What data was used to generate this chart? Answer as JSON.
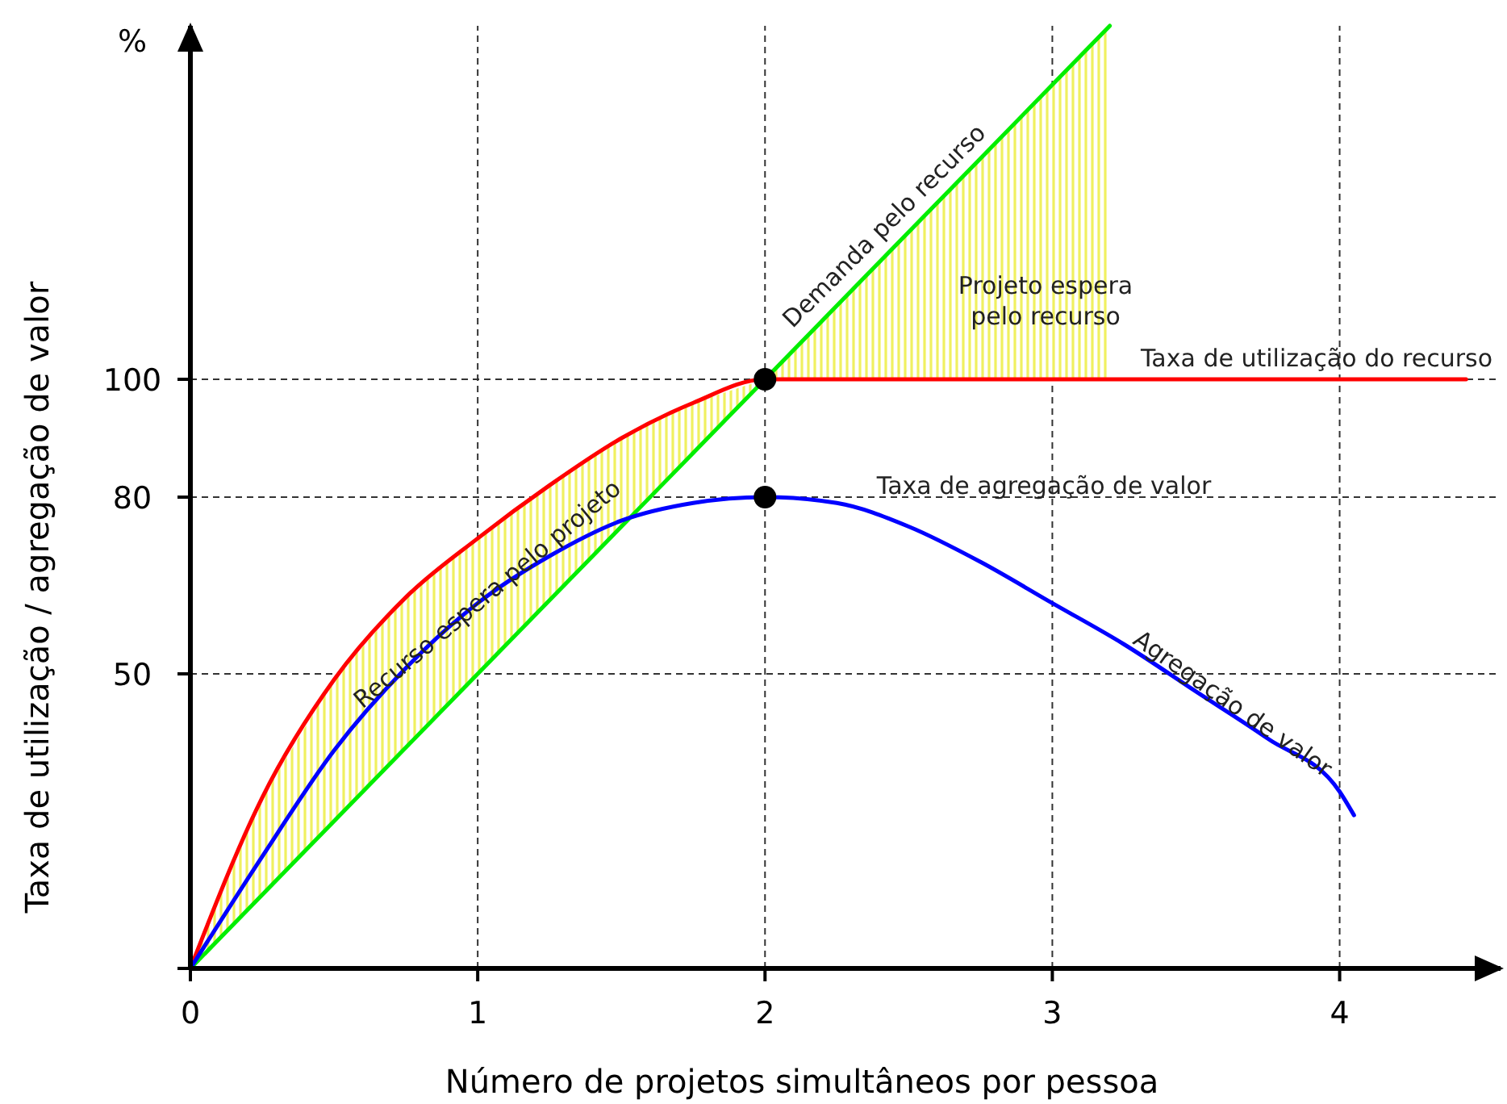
{
  "chart_data": {
    "type": "line",
    "xlabel": "Número de projetos simultâneos por pessoa",
    "ylabel": "Taxa de utilização / agregação de valor",
    "xlim": [
      0,
      4.56
    ],
    "ylim": [
      0,
      160
    ],
    "xticks": [
      0,
      1,
      2,
      3,
      4
    ],
    "yticks": [
      {
        "value": 0,
        "label": null
      },
      50,
      80,
      100
    ],
    "grid": true,
    "series": [
      {
        "color": "#00ee00",
        "x": [
          0,
          0.25,
          0.5,
          0.75,
          1,
          1.25,
          1.5,
          1.75,
          2,
          2.5,
          3,
          3.2
        ],
        "values": [
          0,
          12.5,
          25,
          37.5,
          50,
          62.5,
          75,
          87.5,
          100,
          125,
          150,
          160
        ],
        "lower": [
          0,
          12.5,
          25,
          37.5,
          50,
          62.5,
          75,
          87.5,
          100,
          100,
          100,
          100
        ],
        "upper": [
          0,
          29,
          49,
          63,
          73,
          82,
          90,
          96,
          100,
          125,
          150,
          160
        ]
      },
      {
        "color": "#ff0000",
        "x": [
          0,
          0.25,
          0.5,
          0.75,
          1,
          1.25,
          1.5,
          1.75,
          2,
          4.44
        ],
        "values": [
          0,
          29,
          49,
          63,
          73,
          82,
          90,
          96,
          100,
          100
        ]
      },
      {
        "color": "#0000ff",
        "x": [
          0,
          0.25,
          0.5,
          0.75,
          1,
          1.25,
          1.5,
          1.75,
          2,
          2.25,
          2.5,
          2.75,
          3,
          3.25,
          3.5,
          3.75,
          4,
          4.05
        ],
        "values": [
          0,
          19,
          37,
          51,
          62,
          70,
          76,
          79,
          80,
          79,
          75,
          69,
          62,
          55,
          47,
          39,
          30,
          26
        ]
      },
      {
        "type": "scatter",
        "color": "#000000",
        "marker": "circle",
        "x": [
          2,
          2
        ],
        "values": [
          100,
          80
        ]
      }
    ],
    "annotations": [
      "%",
      "Demanda pelo recurso",
      "Projeto espera pelo recurso",
      "Taxa de utilização do recurso",
      "Recurso espera pelo projeto",
      "Taxa de agregação de valor",
      "Agregação de valor"
    ]
  }
}
